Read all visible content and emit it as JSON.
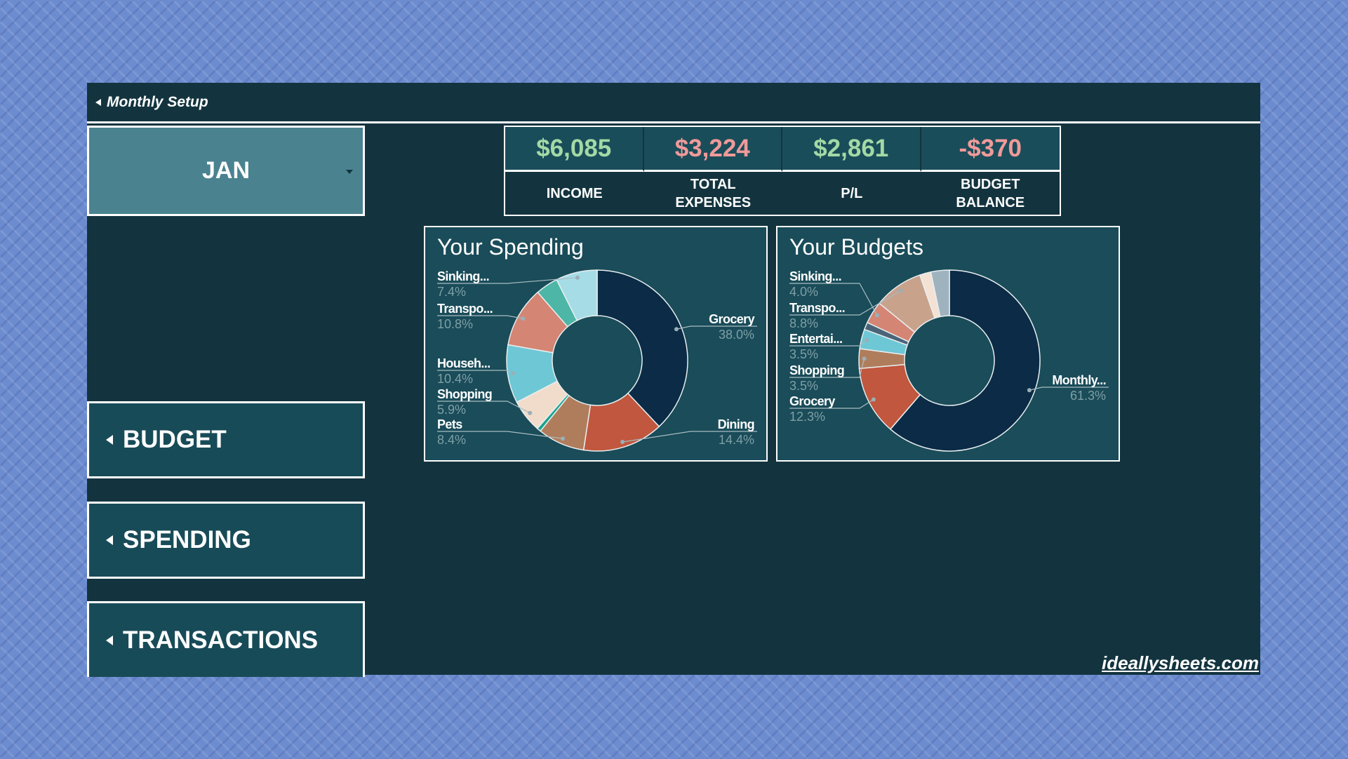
{
  "header": {
    "title": "Monthly Setup"
  },
  "month_selector": {
    "value": "JAN"
  },
  "kpis": [
    {
      "value": "$6,085",
      "label": "INCOME",
      "color": "#a3d9a5"
    },
    {
      "value": "$3,224",
      "label": "TOTAL EXPENSES",
      "color": "#f19a9a"
    },
    {
      "value": "$2,861",
      "label": "P/L",
      "color": "#a3d9a5"
    },
    {
      "value": "-$370",
      "label": "BUDGET BALANCE",
      "color": "#f19a9a"
    }
  ],
  "nav": {
    "budget": "BUDGET",
    "spending": "SPENDING",
    "transactions": "TRANSACTIONS"
  },
  "footer": {
    "site": "ideallysheets.com"
  },
  "chart_data": [
    {
      "type": "pie",
      "donut": true,
      "title": "Your Spending",
      "slices": [
        {
          "name": "Grocery",
          "value": 38.0,
          "pct": "38.0%",
          "color": "#0b2b46"
        },
        {
          "name": "Dining",
          "value": 14.4,
          "pct": "14.4%",
          "color": "#c0573e"
        },
        {
          "name": "Pets",
          "value": 8.4,
          "pct": "8.4%",
          "color": "#b07d5c"
        },
        {
          "name": "",
          "value": 0.7,
          "color": "#17a38f"
        },
        {
          "name": "Shopping",
          "value": 5.9,
          "pct": "5.9%",
          "color": "#f1dccb"
        },
        {
          "name": "Househ...",
          "value": 10.4,
          "pct": "10.4%",
          "color": "#6ec7d5"
        },
        {
          "name": "Transpo...",
          "value": 10.8,
          "pct": "10.8%",
          "color": "#d48574"
        },
        {
          "name": "",
          "value": 4.0,
          "color": "#4db6a6"
        },
        {
          "name": "Sinking...",
          "value": 7.4,
          "pct": "7.4%",
          "color": "#a6dce6"
        }
      ]
    },
    {
      "type": "pie",
      "donut": true,
      "title": "Your Budgets",
      "slices": [
        {
          "name": "Monthly...",
          "value": 61.3,
          "pct": "61.3%",
          "color": "#0b2b46"
        },
        {
          "name": "Grocery",
          "value": 12.3,
          "pct": "12.3%",
          "color": "#c0573e"
        },
        {
          "name": "Shopping",
          "value": 3.5,
          "pct": "3.5%",
          "color": "#b07d5c"
        },
        {
          "name": "Entertai...",
          "value": 3.5,
          "pct": "3.5%",
          "color": "#6ec7d5"
        },
        {
          "name": "",
          "value": 1.3,
          "color": "#4a6478"
        },
        {
          "name": "Sinking...",
          "value": 4.0,
          "pct": "4.0%",
          "color": "#d48574"
        },
        {
          "name": "Transpo...",
          "value": 8.8,
          "pct": "8.8%",
          "color": "#c9a28c"
        },
        {
          "name": "",
          "value": 2.0,
          "color": "#f3e2d4"
        },
        {
          "name": "",
          "value": 3.3,
          "color": "#9fb3bf"
        }
      ]
    }
  ]
}
